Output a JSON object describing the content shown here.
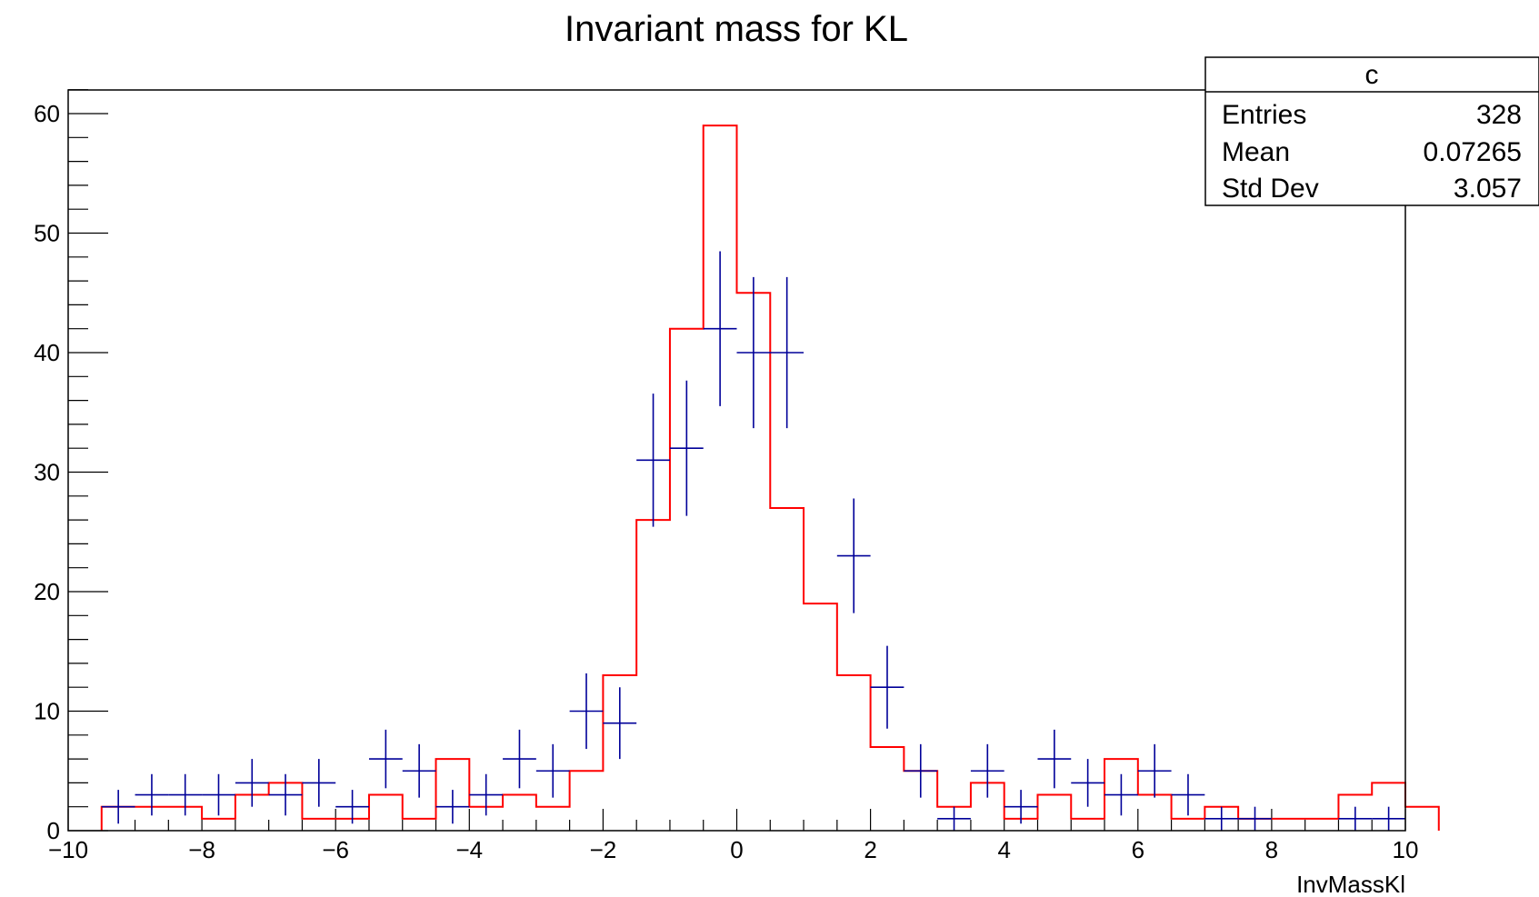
{
  "chart_data": {
    "type": "histogram",
    "title": "Invariant mass for KL",
    "xlabel": "InvMassKl",
    "ylabel": "",
    "xlim": [
      -10,
      10
    ],
    "ylim": [
      0,
      62
    ],
    "x_ticks": [
      "−10",
      "−8",
      "−6",
      "−4",
      "−2",
      "0",
      "2",
      "4",
      "6",
      "8",
      "10"
    ],
    "y_ticks": [
      "0",
      "10",
      "20",
      "30",
      "40",
      "50",
      "60"
    ],
    "bin_width": 0.5,
    "grid": false,
    "colors": {
      "data": "#000099",
      "model": "#ff0000",
      "frame": "#000000"
    },
    "stats_box": {
      "name": "c",
      "rows": [
        {
          "label": "Entries",
          "value": "328"
        },
        {
          "label": "Mean",
          "value": "0.07265"
        },
        {
          "label": "Std Dev",
          "value": "3.057"
        }
      ]
    },
    "series": [
      {
        "style": "step",
        "x_start": -9.5,
        "values": [
          2,
          2,
          2,
          1,
          3,
          4,
          1,
          1,
          3,
          1,
          6,
          2,
          3,
          2,
          5,
          13,
          26,
          42,
          59,
          45,
          27,
          19,
          13,
          7,
          5,
          2,
          4,
          1,
          3,
          1,
          6,
          3,
          1,
          2,
          1,
          1,
          1,
          3,
          4,
          2
        ]
      },
      {
        "style": "error-cross",
        "x_start": -9.5,
        "values": [
          2,
          3,
          3,
          3,
          4,
          3,
          4,
          2,
          6,
          5,
          2,
          3,
          6,
          5,
          10,
          9,
          31,
          32,
          42,
          40,
          40,
          0,
          23,
          12,
          5,
          1,
          5,
          2,
          6,
          4,
          3,
          5,
          3,
          1,
          1,
          0,
          0,
          1,
          1,
          0
        ]
      }
    ]
  }
}
